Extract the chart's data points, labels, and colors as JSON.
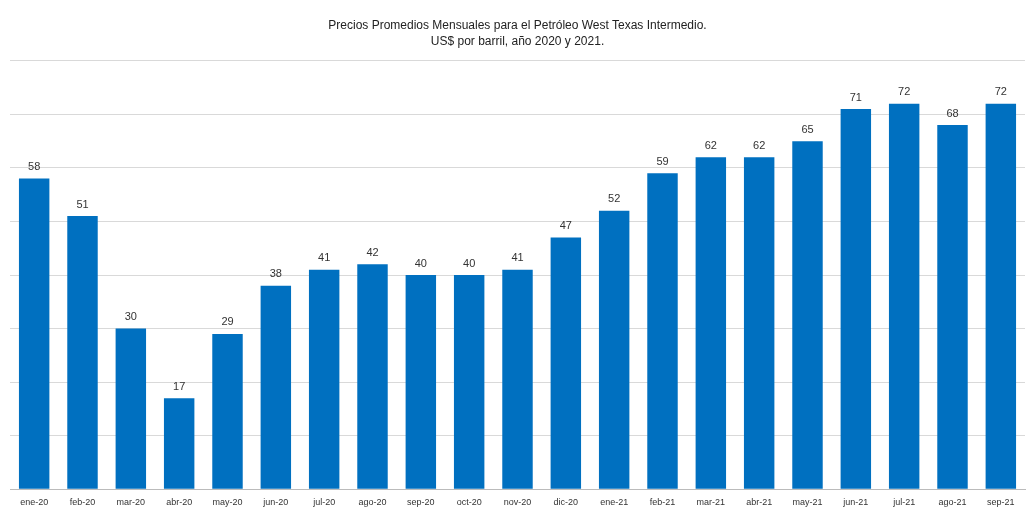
{
  "chart_data": {
    "type": "bar",
    "title": "Precios Promedios Mensuales para el Petróleo West Texas Intermedio.",
    "subtitle": "US$ por barril, año 2020 y 2021.",
    "categories": [
      "ene-20",
      "feb-20",
      "mar-20",
      "abr-20",
      "may-20",
      "jun-20",
      "jul-20",
      "ago-20",
      "sep-20",
      "oct-20",
      "nov-20",
      "dic-20",
      "ene-21",
      "feb-21",
      "mar-21",
      "abr-21",
      "may-21",
      "jun-21",
      "jul-21",
      "ago-21",
      "sep-21"
    ],
    "values": [
      58,
      51,
      30,
      17,
      29,
      38,
      41,
      42,
      40,
      40,
      41,
      47,
      52,
      59,
      62,
      62,
      65,
      71,
      72,
      68,
      72
    ],
    "color": "#0070c0",
    "ylim": [
      0,
      80
    ],
    "grid": "y",
    "tick_labels": "x",
    "data_labels": true
  }
}
